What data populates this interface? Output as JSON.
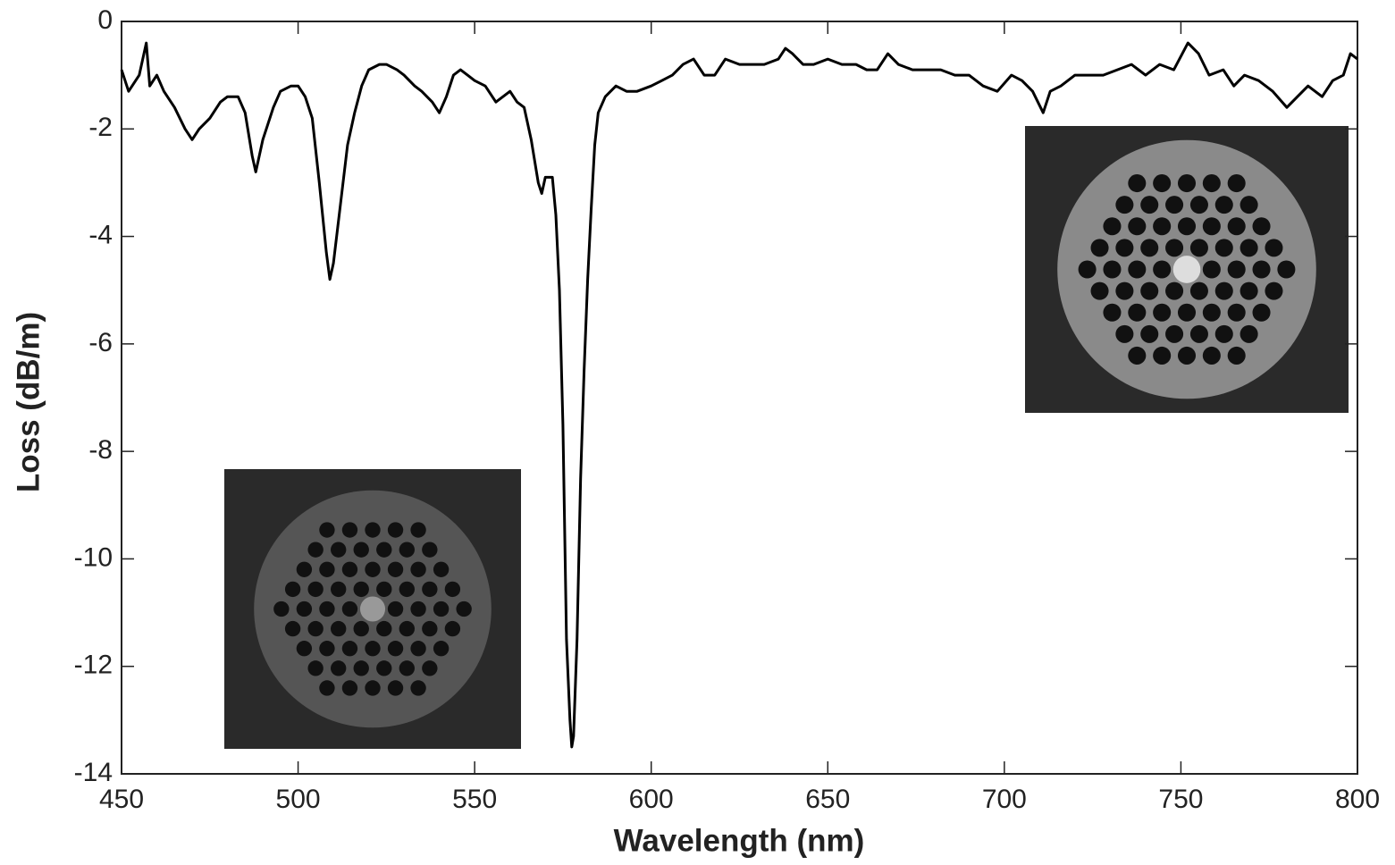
{
  "chart_data": {
    "type": "line",
    "xlabel": "Wavelength (nm)",
    "ylabel": "Loss (dB/m)",
    "xlim": [
      450,
      800
    ],
    "ylim": [
      -14,
      0
    ],
    "xticks": [
      450,
      500,
      550,
      600,
      650,
      700,
      750,
      800
    ],
    "yticks": [
      0,
      -2,
      -4,
      -6,
      -8,
      -10,
      -12,
      -14
    ],
    "series": [
      {
        "color": "#000000",
        "x": [
          450,
          452,
          455,
          457,
          458,
          460,
          462,
          465,
          468,
          470,
          472,
          475,
          478,
          480,
          483,
          485,
          487,
          488,
          490,
          493,
          495,
          498,
          500,
          502,
          504,
          506,
          508,
          509,
          510,
          512,
          514,
          516,
          518,
          520,
          523,
          525,
          528,
          530,
          533,
          535,
          538,
          540,
          542,
          544,
          546,
          548,
          550,
          553,
          556,
          558,
          560,
          562,
          564,
          566,
          568,
          569,
          570,
          572,
          573,
          574,
          575,
          576,
          577,
          577.5,
          578,
          579,
          580,
          581,
          582,
          583,
          584,
          585,
          587,
          590,
          593,
          596,
          600,
          603,
          606,
          609,
          612,
          615,
          618,
          621,
          625,
          628,
          632,
          636,
          638,
          640,
          643,
          646,
          650,
          654,
          658,
          661,
          664,
          667,
          670,
          674,
          678,
          682,
          686,
          690,
          694,
          698,
          702,
          705,
          708,
          711,
          713,
          716,
          720,
          724,
          728,
          732,
          736,
          740,
          744,
          748,
          752,
          755,
          758,
          762,
          765,
          768,
          772,
          776,
          780,
          783,
          786,
          790,
          793,
          796,
          798,
          800
        ],
        "values": [
          -0.9,
          -1.3,
          -1.0,
          -0.4,
          -1.2,
          -1.0,
          -1.3,
          -1.6,
          -2.0,
          -2.2,
          -2.0,
          -1.8,
          -1.5,
          -1.4,
          -1.4,
          -1.7,
          -2.5,
          -2.8,
          -2.2,
          -1.6,
          -1.3,
          -1.2,
          -1.2,
          -1.4,
          -1.8,
          -3.0,
          -4.3,
          -4.8,
          -4.5,
          -3.4,
          -2.3,
          -1.7,
          -1.2,
          -0.9,
          -0.8,
          -0.8,
          -0.9,
          -1.0,
          -1.2,
          -1.3,
          -1.5,
          -1.7,
          -1.4,
          -1.0,
          -0.9,
          -1.0,
          -1.1,
          -1.2,
          -1.5,
          -1.4,
          -1.3,
          -1.5,
          -1.6,
          -2.2,
          -3.0,
          -3.2,
          -2.9,
          -2.9,
          -3.6,
          -5.0,
          -7.5,
          -11.5,
          -13.0,
          -13.5,
          -13.3,
          -11.5,
          -8.5,
          -6.5,
          -4.8,
          -3.5,
          -2.3,
          -1.7,
          -1.4,
          -1.2,
          -1.3,
          -1.3,
          -1.2,
          -1.1,
          -1.0,
          -0.8,
          -0.7,
          -1.0,
          -1.0,
          -0.7,
          -0.8,
          -0.8,
          -0.8,
          -0.7,
          -0.5,
          -0.6,
          -0.8,
          -0.8,
          -0.7,
          -0.8,
          -0.8,
          -0.9,
          -0.9,
          -0.6,
          -0.8,
          -0.9,
          -0.9,
          -0.9,
          -1.0,
          -1.0,
          -1.2,
          -1.3,
          -1.0,
          -1.1,
          -1.3,
          -1.7,
          -1.3,
          -1.2,
          -1.0,
          -1.0,
          -1.0,
          -0.9,
          -0.8,
          -1.0,
          -0.8,
          -0.9,
          -0.4,
          -0.6,
          -1.0,
          -0.9,
          -1.2,
          -1.0,
          -1.1,
          -1.3,
          -1.6,
          -1.4,
          -1.2,
          -1.4,
          -1.1,
          -1.0,
          -0.6,
          -0.7
        ]
      }
    ]
  }
}
